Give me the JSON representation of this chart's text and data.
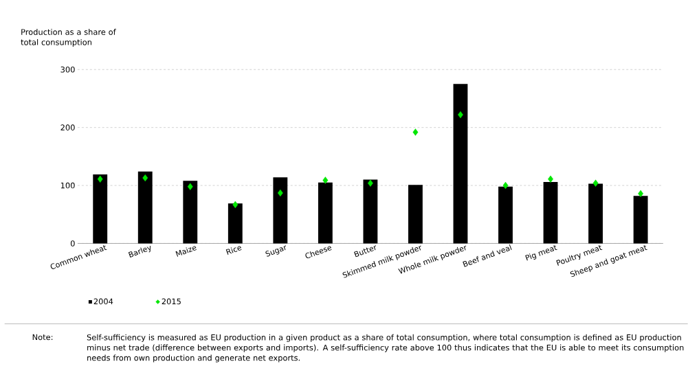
{
  "chart_data": {
    "type": "bar",
    "ylabel": "Production as a share of total consumption",
    "categories": [
      "Common wheat",
      "Barley",
      "Maize",
      "Rice",
      "Sugar",
      "Cheese",
      "Butter",
      "Skimmed milk powder",
      "Whole milk powder",
      "Beef and veal",
      "Pig meat",
      "Poultry meat",
      "Sheep and goat meat"
    ],
    "series": [
      {
        "name": "2004",
        "color": "#000000",
        "values": [
          119,
          124,
          108,
          69,
          114,
          105,
          110,
          101,
          275,
          98,
          106,
          103,
          82
        ]
      },
      {
        "name": "2015",
        "type": "scatter",
        "marker": "diamond",
        "color": "#00e600",
        "values": [
          111,
          113,
          98,
          67,
          87,
          109,
          104,
          192,
          222,
          100,
          111,
          104,
          86
        ]
      }
    ],
    "ylim": [
      0,
      300
    ],
    "yticks": [
      0,
      100,
      200,
      300
    ],
    "grid": "y",
    "legend": "bottom",
    "annotations": [
      "Note:",
      "Self-sufficiency is measured as EU production in a given product as a share of total consumption, where total consumption is defined as EU production minus net trade (difference between exports and imports). A self-sufficiency rate above 100 thus indicates that the EU is able to meet its consumption needs from own production and generate net exports."
    ]
  }
}
